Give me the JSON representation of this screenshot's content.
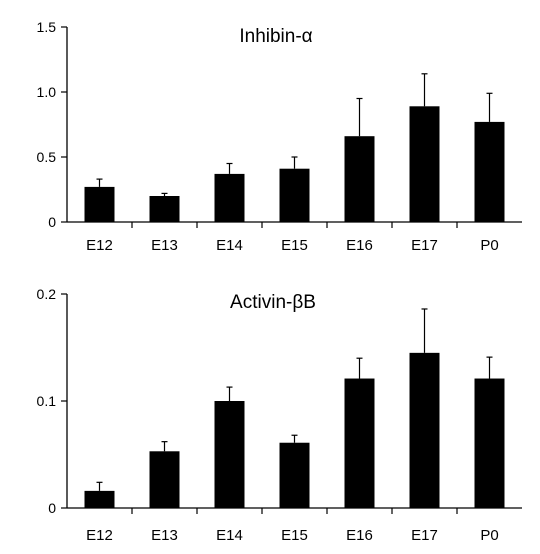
{
  "chart_data": [
    {
      "type": "bar",
      "title": "Inhibin-α",
      "xlabel": "",
      "ylabel": "",
      "categories": [
        "E12",
        "E13",
        "E14",
        "E15",
        "E16",
        "E17",
        "P0"
      ],
      "values": [
        0.27,
        0.2,
        0.37,
        0.41,
        0.66,
        0.89,
        0.77
      ],
      "errors": [
        0.06,
        0.02,
        0.08,
        0.09,
        0.29,
        0.25,
        0.22
      ],
      "ylim": [
        0,
        1.5
      ],
      "yticks": [
        0,
        0.5,
        1.0,
        1.5
      ],
      "ytick_labels": [
        "0",
        "0.5",
        "1.0",
        "1.5"
      ],
      "bar_color": "#000000",
      "grid": false
    },
    {
      "type": "bar",
      "title": "Activin-βB",
      "xlabel": "",
      "ylabel": "",
      "categories": [
        "E12",
        "E13",
        "E14",
        "E15",
        "E16",
        "E17",
        "P0"
      ],
      "values": [
        0.016,
        0.053,
        0.1,
        0.061,
        0.121,
        0.145,
        0.121
      ],
      "errors": [
        0.008,
        0.009,
        0.013,
        0.007,
        0.019,
        0.041,
        0.02
      ],
      "ylim": [
        0,
        0.2
      ],
      "yticks": [
        0,
        0.1,
        0.2
      ],
      "ytick_labels": [
        "0",
        "0.1",
        "0.2"
      ],
      "bar_color": "#000000",
      "grid": false
    }
  ]
}
